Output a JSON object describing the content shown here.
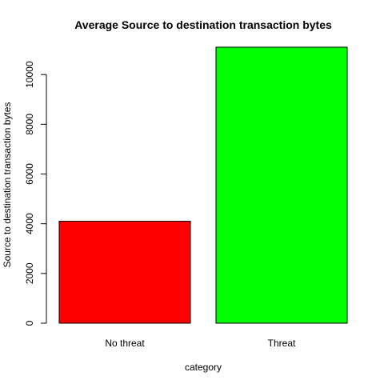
{
  "chart_data": {
    "type": "bar",
    "title": "Average Source to destination transaction bytes",
    "xlabel": "category",
    "ylabel": "Source to destination transaction bytes",
    "categories": [
      "No threat",
      "Threat"
    ],
    "values": [
      4100,
      11100
    ],
    "bar_colors": [
      "#ff0000",
      "#00ff00"
    ],
    "ylim": [
      0,
      11100
    ],
    "yticks": [
      0,
      2000,
      4000,
      6000,
      8000,
      10000
    ],
    "grid": false,
    "legend": "none"
  }
}
